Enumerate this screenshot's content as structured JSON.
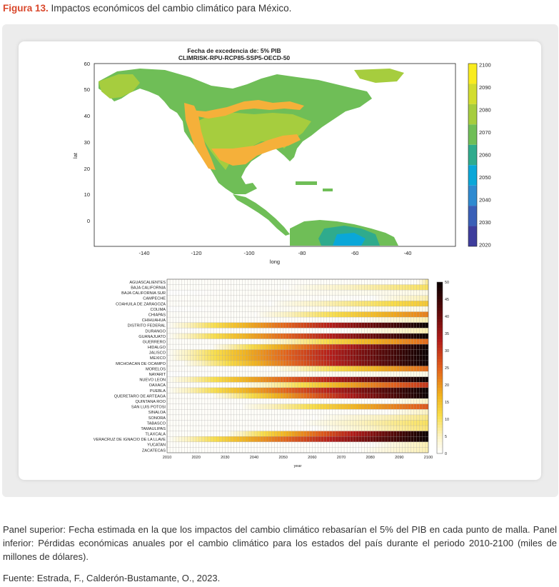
{
  "figure": {
    "label": "Figura 13.",
    "title": "Impactos económicos del cambio climático para México."
  },
  "map_panel": {
    "title_line1": "Fecha de excedencia de: 5% PIB",
    "title_line2": "CLIMRISK-RPU-RCP85-SSP5-OECD-50",
    "xlabel": "long",
    "ylabel": "lat",
    "x_ticks": [
      "-140",
      "-120",
      "-100",
      "-80",
      "-60",
      "-40"
    ],
    "y_ticks": [
      "60",
      "50",
      "40",
      "30",
      "20",
      "10",
      "0"
    ],
    "colorbar_ticks": [
      "2100",
      "2090",
      "2080",
      "2070",
      "2060",
      "2050",
      "2040",
      "2030",
      "2020"
    ],
    "colorbar_colors": [
      "#f9ec1f",
      "#d2dd2f",
      "#a6cd3e",
      "#6fbe57",
      "#2fab8d",
      "#0aa7d8",
      "#2f8ad0",
      "#3a5fb7",
      "#3e3d9c"
    ]
  },
  "chart_data": {
    "type": "heatmap",
    "xlabel": "year",
    "x_ticks": [
      "2010",
      "2020",
      "2030",
      "2040",
      "2050",
      "2060",
      "2070",
      "2080",
      "2090",
      "2100"
    ],
    "x_range": [
      2010,
      2100
    ],
    "colorbar_ticks": [
      "50",
      "45",
      "40",
      "35",
      "30",
      "25",
      "20",
      "15",
      "10",
      "5",
      "0"
    ],
    "color_range": [
      0,
      50
    ],
    "rows": [
      {
        "state": "AGUASCALIENTES",
        "onset": 2096,
        "max": 8
      },
      {
        "state": "BAJA CALIFORNIA",
        "onset": 2050,
        "max": 10
      },
      {
        "state": "BAJA CALIFORNIA SUR",
        "onset": null,
        "max": 2
      },
      {
        "state": "CAMPECHE",
        "onset": 2080,
        "max": 6
      },
      {
        "state": "COAHUILA DE ZARAGOZA",
        "onset": 2045,
        "max": 14
      },
      {
        "state": "COLIMA",
        "onset": null,
        "max": 2
      },
      {
        "state": "CHIAPAS",
        "onset": 2040,
        "max": 22
      },
      {
        "state": "CHIHUAHUA",
        "onset": 2075,
        "max": 6
      },
      {
        "state": "DISTRITO FEDERAL",
        "onset": 2010,
        "max": 50
      },
      {
        "state": "DURANGO",
        "onset": 2070,
        "max": 6
      },
      {
        "state": "GUANAJUATO",
        "onset": 2010,
        "max": 50
      },
      {
        "state": "GUERRERO",
        "onset": 2040,
        "max": 24
      },
      {
        "state": "HIDALGO",
        "onset": 2025,
        "max": 50
      },
      {
        "state": "JALISCO",
        "onset": 2010,
        "max": 50
      },
      {
        "state": "MEXICO",
        "onset": 2010,
        "max": 50
      },
      {
        "state": "MICHOACAN DE OCAMPO",
        "onset": 2015,
        "max": 50
      },
      {
        "state": "MORELOS",
        "onset": 2045,
        "max": 24
      },
      {
        "state": "NAYARIT",
        "onset": null,
        "max": 2
      },
      {
        "state": "NUEVO LEON",
        "onset": 2010,
        "max": 50
      },
      {
        "state": "OAXACA",
        "onset": 2035,
        "max": 30
      },
      {
        "state": "PUEBLA",
        "onset": 2010,
        "max": 50
      },
      {
        "state": "QUERETARO DE ARTEAGA",
        "onset": 2025,
        "max": 50
      },
      {
        "state": "QUINTANA ROO",
        "onset": 2085,
        "max": 5
      },
      {
        "state": "SAN LUIS POTOSI",
        "onset": 2035,
        "max": 26
      },
      {
        "state": "SINALOA",
        "onset": 2085,
        "max": 5
      },
      {
        "state": "SONORA",
        "onset": 2060,
        "max": 8
      },
      {
        "state": "TABASCO",
        "onset": 2055,
        "max": 10
      },
      {
        "state": "TAMAULIPAS",
        "onset": 2060,
        "max": 9
      },
      {
        "state": "TLAXCALA",
        "onset": 2030,
        "max": 50
      },
      {
        "state": "VERACRUZ DE IGNACIO DE LA LLAVE",
        "onset": 2010,
        "max": 50
      },
      {
        "state": "YUCATAN",
        "onset": 2080,
        "max": 6
      },
      {
        "state": "ZACATECAS",
        "onset": 2075,
        "max": 6
      }
    ]
  },
  "caption": "Panel superior: Fecha estimada en la que los impactos del cambio climático rebasarían el 5% del PIB en cada punto de malla. Panel inferior: Pérdidas económicas anuales por el cambio climático para los estados del país durante el periodo 2010-2100 (miles de millones de dólares).",
  "source": "Fuente: Estrada, F., Calderón-Bustamante, O., 2023."
}
